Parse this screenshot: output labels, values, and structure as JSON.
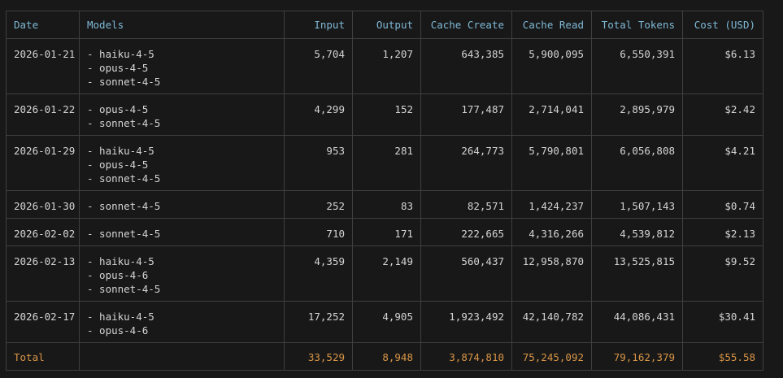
{
  "columns": {
    "date": "Date",
    "models": "Models",
    "input": "Input",
    "output": "Output",
    "cache_create": "Cache Create",
    "cache_read": "Cache Read",
    "total_tokens": "Total Tokens",
    "cost": "Cost (USD)"
  },
  "rows": [
    {
      "date": "2026-01-21",
      "models": [
        "- haiku-4-5",
        "- opus-4-5",
        "- sonnet-4-5"
      ],
      "input": "5,704",
      "output": "1,207",
      "cache_create": "643,385",
      "cache_read": "5,900,095",
      "total_tokens": "6,550,391",
      "cost": "$6.13"
    },
    {
      "date": "2026-01-22",
      "models": [
        "- opus-4-5",
        "- sonnet-4-5"
      ],
      "input": "4,299",
      "output": "152",
      "cache_create": "177,487",
      "cache_read": "2,714,041",
      "total_tokens": "2,895,979",
      "cost": "$2.42"
    },
    {
      "date": "2026-01-29",
      "models": [
        "- haiku-4-5",
        "- opus-4-5",
        "- sonnet-4-5"
      ],
      "input": "953",
      "output": "281",
      "cache_create": "264,773",
      "cache_read": "5,790,801",
      "total_tokens": "6,056,808",
      "cost": "$4.21"
    },
    {
      "date": "2026-01-30",
      "models": [
        "- sonnet-4-5"
      ],
      "input": "252",
      "output": "83",
      "cache_create": "82,571",
      "cache_read": "1,424,237",
      "total_tokens": "1,507,143",
      "cost": "$0.74"
    },
    {
      "date": "2026-02-02",
      "models": [
        "- sonnet-4-5"
      ],
      "input": "710",
      "output": "171",
      "cache_create": "222,665",
      "cache_read": "4,316,266",
      "total_tokens": "4,539,812",
      "cost": "$2.13"
    },
    {
      "date": "2026-02-13",
      "models": [
        "- haiku-4-5",
        "- opus-4-6",
        "- sonnet-4-5"
      ],
      "input": "4,359",
      "output": "2,149",
      "cache_create": "560,437",
      "cache_read": "12,958,870",
      "total_tokens": "13,525,815",
      "cost": "$9.52"
    },
    {
      "date": "2026-02-17",
      "models": [
        "- haiku-4-5",
        "- opus-4-6"
      ],
      "input": "17,252",
      "output": "4,905",
      "cache_create": "1,923,492",
      "cache_read": "42,140,782",
      "total_tokens": "44,086,431",
      "cost": "$30.41"
    }
  ],
  "total": {
    "label": "Total",
    "input": "33,529",
    "output": "8,948",
    "cache_create": "3,874,810",
    "cache_read": "75,245,092",
    "total_tokens": "79,162,379",
    "cost": "$55.58"
  },
  "colors": {
    "background": "#181818",
    "header_text": "#7fb9d6",
    "body_text": "#d4d4d4",
    "total_text": "#d99545",
    "border": "#3f3f3f"
  }
}
